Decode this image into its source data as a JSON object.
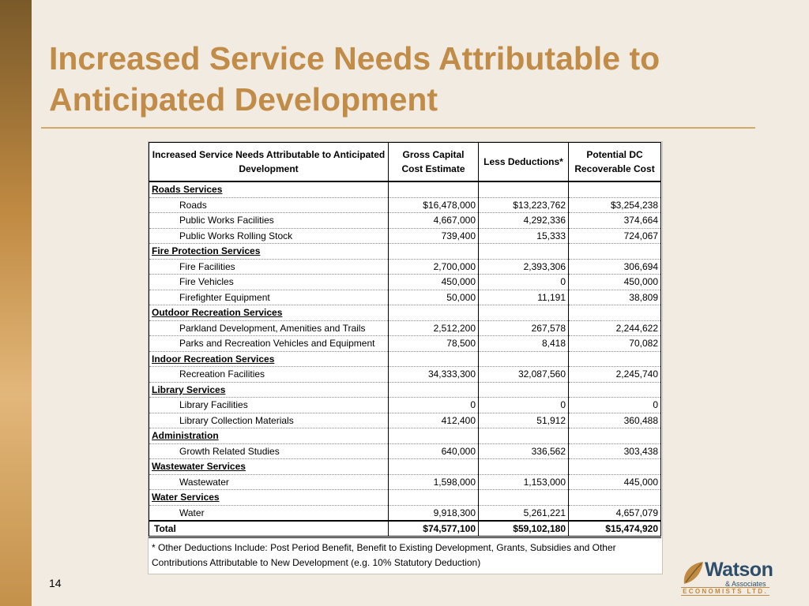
{
  "title": "Increased Service Needs Attributable to Anticipated Development",
  "table": {
    "headers": [
      "Increased Service Needs Attributable to Anticipated Development",
      "Gross Capital Cost Estimate",
      "Less Deductions*",
      "Potential DC Recoverable Cost"
    ],
    "rows": [
      {
        "type": "section",
        "label": "Roads Services"
      },
      {
        "type": "item",
        "label": "Roads",
        "gross": "$16,478,000",
        "deductions": "$13,223,762",
        "recoverable": "$3,254,238"
      },
      {
        "type": "item",
        "label": "Public Works Facilities",
        "gross": "4,667,000",
        "deductions": "4,292,336",
        "recoverable": "374,664"
      },
      {
        "type": "item",
        "label": "Public Works Rolling Stock",
        "gross": "739,400",
        "deductions": "15,333",
        "recoverable": "724,067"
      },
      {
        "type": "section",
        "label": "Fire Protection Services"
      },
      {
        "type": "item",
        "label": "Fire Facilities",
        "gross": "2,700,000",
        "deductions": "2,393,306",
        "recoverable": "306,694"
      },
      {
        "type": "item",
        "label": "Fire Vehicles",
        "gross": "450,000",
        "deductions": "0",
        "recoverable": "450,000"
      },
      {
        "type": "item",
        "label": "Firefighter Equipment",
        "gross": "50,000",
        "deductions": "11,191",
        "recoverable": "38,809"
      },
      {
        "type": "section",
        "label": "Outdoor Recreation Services"
      },
      {
        "type": "item",
        "label": "Parkland Development, Amenities and Trails",
        "gross": "2,512,200",
        "deductions": "267,578",
        "recoverable": "2,244,622"
      },
      {
        "type": "item",
        "label": "Parks and Recreation Vehicles and Equipment",
        "gross": "78,500",
        "deductions": "8,418",
        "recoverable": "70,082"
      },
      {
        "type": "section",
        "label": "Indoor Recreation Services"
      },
      {
        "type": "item",
        "label": "Recreation Facilities",
        "gross": "34,333,300",
        "deductions": "32,087,560",
        "recoverable": "2,245,740"
      },
      {
        "type": "section",
        "label": "Library Services"
      },
      {
        "type": "item",
        "label": "Library Facilities",
        "gross": "0",
        "deductions": "0",
        "recoverable": "0"
      },
      {
        "type": "item",
        "label": "Library Collection Materials",
        "gross": "412,400",
        "deductions": "51,912",
        "recoverable": "360,488"
      },
      {
        "type": "section",
        "label": "Administration"
      },
      {
        "type": "item",
        "label": "Growth Related Studies",
        "gross": "640,000",
        "deductions": "336,562",
        "recoverable": "303,438"
      },
      {
        "type": "section",
        "label": "Wastewater Services"
      },
      {
        "type": "item",
        "label": "Wastewater",
        "gross": "1,598,000",
        "deductions": "1,153,000",
        "recoverable": "445,000"
      },
      {
        "type": "section",
        "label": "Water Services"
      },
      {
        "type": "item",
        "label": "Water",
        "gross": "9,918,300",
        "deductions": "5,261,221",
        "recoverable": "4,657,079"
      },
      {
        "type": "total",
        "label": "Total",
        "gross": "$74,577,100",
        "deductions": "$59,102,180",
        "recoverable": "$15,474,920"
      }
    ],
    "footnote": "*  Other Deductions Include:  Post Period Benefit, Benefit to Existing Development, Grants, Subsidies and Other Contributions Attributable to New Development (e.g. 10% Statutory Deduction)"
  },
  "page_number": "14",
  "logo": {
    "name": "Watson",
    "tagline": "& Associates",
    "subtitle": "ECONOMISTS LTD.",
    "icon": "leaf-icon"
  },
  "colors": {
    "title": "#c08c48",
    "background": "#f2ebe1",
    "rule": "#d2a866"
  }
}
